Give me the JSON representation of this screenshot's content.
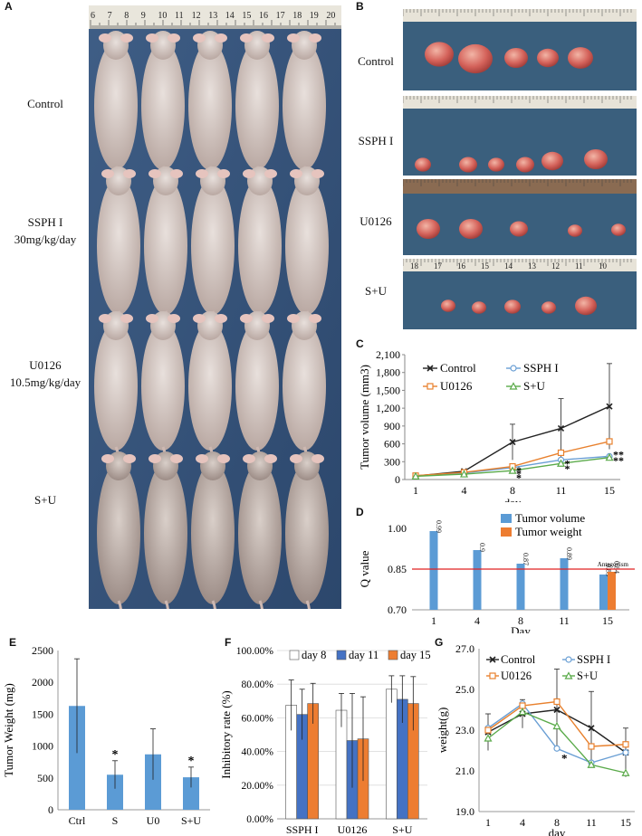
{
  "panels": {
    "a": "A",
    "b": "B",
    "c": "C",
    "d": "D",
    "e": "E",
    "f": "F",
    "g": "G"
  },
  "panel_a": {
    "groups": [
      {
        "line1": "Control",
        "line2": ""
      },
      {
        "line1": "SSPH I",
        "line2": "30mg/kg/day"
      },
      {
        "line1": "U0126",
        "line2": "10.5mg/kg/day"
      },
      {
        "line1": "S+U",
        "line2": ""
      }
    ],
    "ruler_numbers": [
      "6",
      "7",
      "8",
      "9",
      "10",
      "11",
      "12",
      "13",
      "14",
      "15",
      "16",
      "17",
      "18",
      "19",
      "20"
    ]
  },
  "panel_b": {
    "groups": [
      "Control",
      "SSPH I",
      "U0126",
      "S+U"
    ],
    "tumor_counts": [
      5,
      6,
      5,
      5
    ],
    "ruler_numbers": [
      "18",
      "17",
      "16",
      "15",
      "14",
      "13",
      "12",
      "11",
      "10"
    ]
  },
  "chart_data": [
    {
      "id": "C",
      "type": "line",
      "x": [
        1,
        4,
        8,
        11,
        15
      ],
      "series": [
        {
          "name": "Control",
          "values": [
            60,
            140,
            630,
            860,
            1230
          ],
          "error": [
            0,
            0,
            300,
            500,
            720
          ],
          "color": "#222222",
          "marker": "x"
        },
        {
          "name": "SSPH I",
          "values": [
            60,
            110,
            200,
            330,
            390
          ],
          "color": "#6a9fd4",
          "marker": "o"
        },
        {
          "name": "U0126",
          "values": [
            65,
            120,
            220,
            450,
            640
          ],
          "color": "#e8812e",
          "marker": "s"
        },
        {
          "name": "S+U",
          "values": [
            55,
            90,
            150,
            270,
            370
          ],
          "color": "#5aaa4a",
          "marker": "^"
        }
      ],
      "ylim": [
        0,
        2100
      ],
      "yticks": [
        "0",
        "300",
        "600",
        "900",
        "1,200",
        "1,500",
        "1,800",
        "2,100"
      ],
      "xlabel": "day",
      "ylabel": "Tumor volume (mm3)",
      "stars": [
        {
          "x": 8,
          "y": 155,
          "t": "*"
        },
        {
          "x": 8,
          "y": 100,
          "t": "*"
        },
        {
          "x": 8,
          "y": 30,
          "t": "*"
        },
        {
          "x": 11,
          "y": 265,
          "t": "*"
        },
        {
          "x": 11,
          "y": 180,
          "t": "*"
        },
        {
          "x": 15,
          "y": 420,
          "t": "**"
        },
        {
          "x": 15,
          "y": 320,
          "t": "**"
        }
      ]
    },
    {
      "id": "D",
      "type": "bar",
      "categories": [
        "1",
        "4",
        "8",
        "11",
        "15"
      ],
      "series": [
        {
          "name": "Tumor volume",
          "values": [
            0.99,
            0.92,
            0.87,
            0.89,
            0.83
          ],
          "color": "#5b9bd5"
        },
        {
          "name": "Tumor weight",
          "values": [
            null,
            null,
            null,
            null,
            0.84
          ],
          "color": "#ed7d31"
        }
      ],
      "labels": [
        "0.99",
        "0.9",
        "0.87",
        "0.89",
        "0.83",
        "0.84"
      ],
      "ylim": [
        0.7,
        1.0
      ],
      "yticks": [
        "0.70",
        "0.85",
        "1.00"
      ],
      "xlabel": "Day",
      "ylabel": "Q value",
      "reference": {
        "value": 0.85,
        "label": "Antagonism",
        "color": "#e02020"
      }
    },
    {
      "id": "E",
      "type": "bar",
      "categories": [
        "Ctrl",
        "S",
        "U0",
        "S+U"
      ],
      "values": [
        1630,
        550,
        870,
        510
      ],
      "error": [
        740,
        220,
        400,
        160
      ],
      "stars": [
        "",
        "*",
        "",
        "*"
      ],
      "color": "#5b9bd5",
      "ylim": [
        0,
        2500
      ],
      "yticks": [
        "0",
        "500",
        "1000",
        "1500",
        "2000",
        "2500"
      ],
      "ylabel": "Tumor Weight (mg)"
    },
    {
      "id": "F",
      "type": "bar",
      "categories": [
        "SSPH I",
        "U0126",
        "S+U"
      ],
      "series": [
        {
          "name": "day 8",
          "values": [
            67.5,
            64.5,
            77
          ],
          "error": [
            15,
            10,
            8
          ],
          "color": "#ffffff"
        },
        {
          "name": "day 11",
          "values": [
            62,
            46.5,
            71
          ],
          "error": [
            15,
            28,
            14
          ],
          "color": "#4472c4"
        },
        {
          "name": "day 15",
          "values": [
            68.5,
            47.5,
            68.5
          ],
          "error": [
            12,
            25,
            16
          ],
          "color": "#ed7d31"
        }
      ],
      "ylim": [
        0,
        100
      ],
      "yticks": [
        "0.00%",
        "20.00%",
        "40.00%",
        "60.00%",
        "80.00%",
        "100.00%"
      ],
      "ylabel": "Inhibitory rate (%)"
    },
    {
      "id": "G",
      "type": "line",
      "x": [
        1,
        4,
        8,
        11,
        15
      ],
      "series": [
        {
          "name": "Control",
          "values": [
            22.9,
            23.8,
            24.0,
            23.1,
            21.9
          ],
          "error": [
            0.9,
            0.7,
            2.0,
            1.8,
            1.2
          ],
          "color": "#222222",
          "marker": "x"
        },
        {
          "name": "SSPH I",
          "values": [
            23.1,
            24.3,
            22.1,
            21.4,
            21.9
          ],
          "color": "#6a9fd4",
          "marker": "o"
        },
        {
          "name": "U0126",
          "values": [
            23.0,
            24.2,
            24.4,
            22.2,
            22.3
          ],
          "color": "#e8812e",
          "marker": "s"
        },
        {
          "name": "S+U",
          "values": [
            22.6,
            23.9,
            23.2,
            21.3,
            20.9
          ],
          "color": "#5aaa4a",
          "marker": "^"
        }
      ],
      "ylim": [
        19.0,
        27.0
      ],
      "yticks": [
        "19.0",
        "21.0",
        "23.0",
        "25.0",
        "27.0"
      ],
      "xlabel": "day",
      "ylabel": "weight(g)",
      "stars": [
        {
          "x": 8,
          "y": 21.6,
          "t": "*"
        }
      ]
    }
  ]
}
